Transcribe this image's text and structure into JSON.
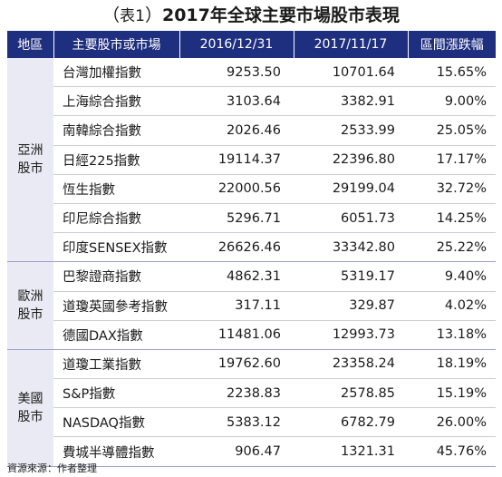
{
  "title": {
    "open": "（",
    "tag": "表1",
    "close": "）",
    "text": "2017年全球主要市場股市表現"
  },
  "columns": [
    "地區",
    "主要股市或市場",
    "2016/12/31",
    "2017/11/17",
    "區間漲跌幅"
  ],
  "groups": [
    {
      "region_line1": "亞洲",
      "region_line2": "股市",
      "rows": [
        {
          "index": "台灣加權指數",
          "v2016": "9253.50",
          "v2017": "10701.64",
          "change": "15.65%"
        },
        {
          "index": "上海綜合指數",
          "v2016": "3103.64",
          "v2017": "3382.91",
          "change": "9.00%"
        },
        {
          "index": "南韓綜合指數",
          "v2016": "2026.46",
          "v2017": "2533.99",
          "change": "25.05%"
        },
        {
          "index": "日經225指數",
          "v2016": "19114.37",
          "v2017": "22396.80",
          "change": "17.17%"
        },
        {
          "index": "恆生指數",
          "v2016": "22000.56",
          "v2017": "29199.04",
          "change": "32.72%"
        },
        {
          "index": "印尼綜合指數",
          "v2016": "5296.71",
          "v2017": "6051.73",
          "change": "14.25%"
        },
        {
          "index": "印度SENSEX指數",
          "v2016": "26626.46",
          "v2017": "33342.80",
          "change": "25.22%"
        }
      ]
    },
    {
      "region_line1": "歐洲",
      "region_line2": "股市",
      "rows": [
        {
          "index": "巴黎證商指數",
          "v2016": "4862.31",
          "v2017": "5319.17",
          "change": "9.40%"
        },
        {
          "index": "道瓊英國參考指數",
          "v2016": "317.11",
          "v2017": "329.87",
          "change": "4.02%"
        },
        {
          "index": "德國DAX指數",
          "v2016": "11481.06",
          "v2017": "12993.73",
          "change": "13.18%"
        }
      ]
    },
    {
      "region_line1": "美國",
      "region_line2": "股市",
      "rows": [
        {
          "index": "道瓊工業指數",
          "v2016": "19762.60",
          "v2017": "23358.24",
          "change": "18.19%"
        },
        {
          "index": "S&P指數",
          "v2016": "2238.83",
          "v2017": "2578.85",
          "change": "15.19%"
        },
        {
          "index": "NASDAQ指數",
          "v2016": "5383.12",
          "v2017": "6782.79",
          "change": "26.00%"
        },
        {
          "index": "費城半導體指數",
          "v2016": "906.47",
          "v2017": "1321.31",
          "change": "45.76%"
        }
      ]
    }
  ],
  "source": "資源來源：作者整理",
  "colors": {
    "header_bg": "#1f2f80",
    "region_bg": "#e9eaf3"
  }
}
